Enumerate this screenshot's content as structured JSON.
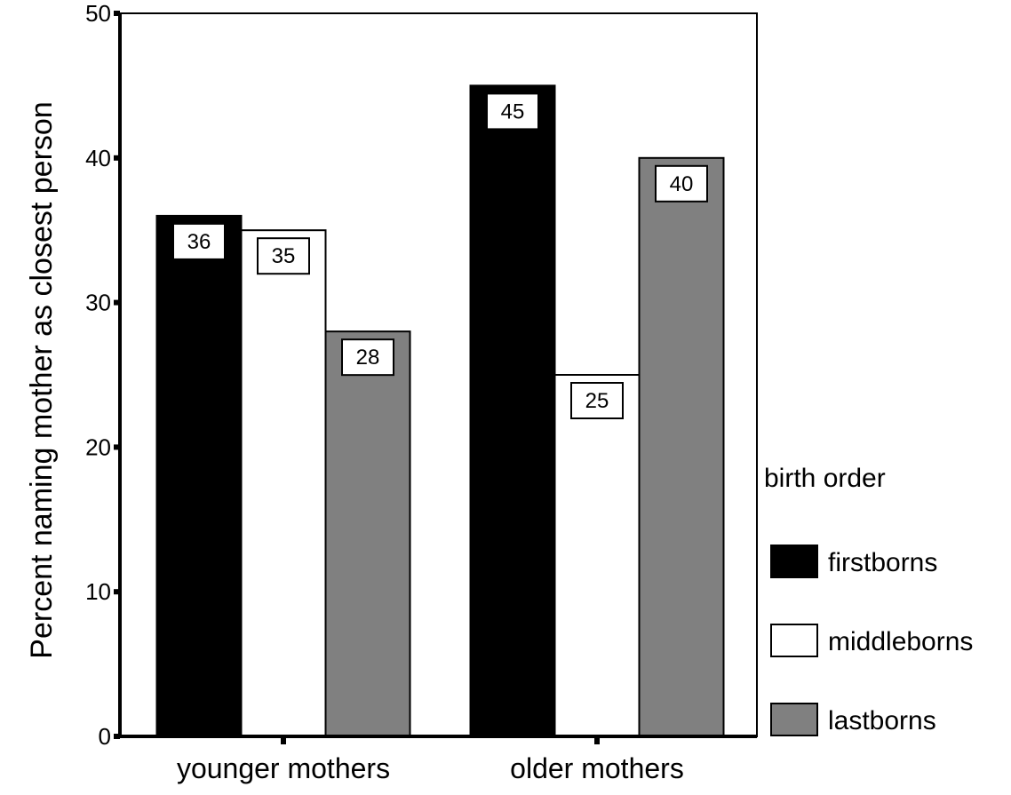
{
  "chart_data": {
    "type": "bar",
    "title": "",
    "xlabel": "",
    "ylabel": "Percent naming mother as closest person",
    "ylim": [
      0,
      50
    ],
    "yticks": [
      0,
      10,
      20,
      30,
      40,
      50
    ],
    "grid": false,
    "categories": [
      "younger mothers",
      "older mothers"
    ],
    "series": [
      {
        "name": "firstborns",
        "values": [
          36,
          45
        ],
        "color": "#000000"
      },
      {
        "name": "middleborns",
        "values": [
          35,
          25
        ],
        "color": "#ffffff"
      },
      {
        "name": "lastborns",
        "values": [
          28,
          40
        ],
        "color": "#808080"
      }
    ],
    "legend": {
      "title": "birth order",
      "position": "right"
    }
  }
}
